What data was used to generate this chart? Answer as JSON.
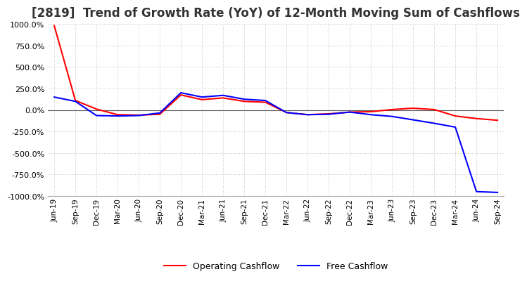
{
  "title": "[2819]  Trend of Growth Rate (YoY) of 12-Month Moving Sum of Cashflows",
  "title_fontsize": 12,
  "ylim": [
    -1000,
    1000
  ],
  "yticks": [
    -1000,
    -750,
    -500,
    -250,
    0,
    250,
    500,
    750,
    1000
  ],
  "yticklabels": [
    "-1000.0%",
    "-750.0%",
    "-500.0%",
    "-250.0%",
    "0.0%",
    "250.0%",
    "500.0%",
    "750.0%",
    "1000.0%"
  ],
  "background_color": "#ffffff",
  "grid_color": "#bbbbbb",
  "operating_color": "#ff0000",
  "free_color": "#0000ff",
  "legend_labels": [
    "Operating Cashflow",
    "Free Cashflow"
  ],
  "x_labels": [
    "Jun-19",
    "Sep-19",
    "Dec-19",
    "Mar-20",
    "Jun-20",
    "Sep-20",
    "Dec-20",
    "Mar-21",
    "Jun-21",
    "Sep-21",
    "Dec-21",
    "Mar-22",
    "Jun-22",
    "Sep-22",
    "Dec-22",
    "Mar-23",
    "Jun-23",
    "Sep-23",
    "Dec-23",
    "Mar-24",
    "Jun-24",
    "Sep-24"
  ],
  "operating_cashflow": [
    980,
    110,
    10,
    -55,
    -60,
    -50,
    175,
    120,
    140,
    100,
    90,
    -30,
    -55,
    -45,
    -25,
    -20,
    5,
    20,
    5,
    -70,
    -100,
    -120
  ],
  "free_cashflow": [
    150,
    100,
    -65,
    -70,
    -65,
    -35,
    200,
    150,
    170,
    125,
    110,
    -30,
    -55,
    -50,
    -25,
    -55,
    -75,
    -115,
    -155,
    -200,
    -950,
    -960
  ]
}
